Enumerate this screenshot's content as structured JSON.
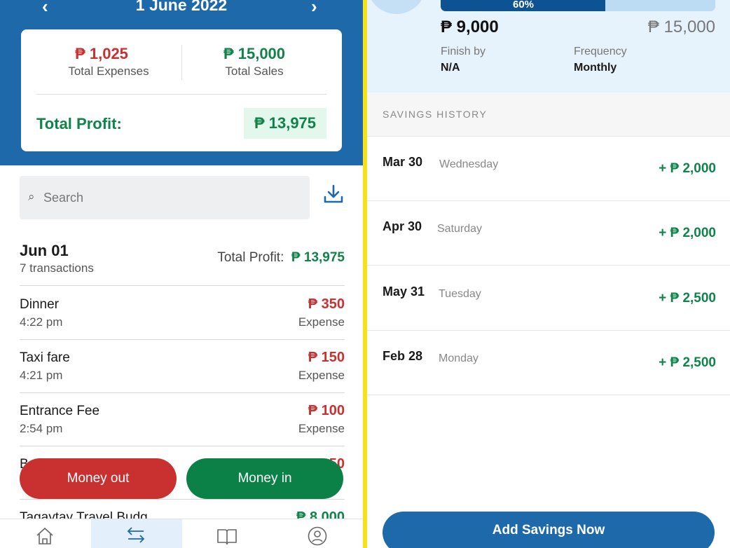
{
  "left": {
    "date": "1 June 2022",
    "summary": {
      "expenses": "₱ 1,025",
      "expenses_label": "Total Expenses",
      "sales": "₱ 15,000",
      "sales_label": "Total Sales",
      "profit_label": "Total Profit:",
      "profit": "₱ 13,975"
    },
    "search_placeholder": "Search",
    "day": {
      "date": "Jun 01",
      "count": "7 transactions",
      "profit_label": "Total Profit:",
      "profit": "₱ 13,975"
    },
    "transactions": [
      {
        "name": "Dinner",
        "time": "4:22 pm",
        "amount": "₱ 350",
        "type": "Expense"
      },
      {
        "name": "Taxi fare",
        "time": "4:21 pm",
        "amount": "₱ 150",
        "type": "Expense"
      },
      {
        "name": "Entrance Fee",
        "time": "2:54 pm",
        "amount": "₱ 100",
        "type": "Expense"
      },
      {
        "name": "B",
        "amount": "₱ 50"
      },
      {
        "name": "Tagaytay Travel Budg",
        "amount": "₱ 8,000"
      }
    ],
    "money_out": "Money out",
    "money_in": "Money in",
    "colors": {
      "brand": "#1d69aa",
      "expense": "#c8312f",
      "income": "#10834a"
    }
  },
  "right": {
    "progress": {
      "percent": 60,
      "label": "60%"
    },
    "saved": "₱ 9,000",
    "target": "₱ 15,000",
    "finish_label": "Finish by",
    "finish_value": "N/A",
    "freq_label": "Frequency",
    "freq_value": "Monthly",
    "history_title": "SAVINGS HISTORY",
    "history": [
      {
        "date": "Mar 30",
        "weekday": "Wednesday",
        "amount": "+  ₱ 2,000"
      },
      {
        "date": "Apr 30",
        "weekday": "Saturday",
        "amount": "+  ₱ 2,000"
      },
      {
        "date": "May 31",
        "weekday": "Tuesday",
        "amount": "+  ₱ 2,500"
      },
      {
        "date": "Feb 28",
        "weekday": "Monday",
        "amount": "+  ₱ 2,500"
      }
    ],
    "add_button": "Add Savings Now"
  }
}
